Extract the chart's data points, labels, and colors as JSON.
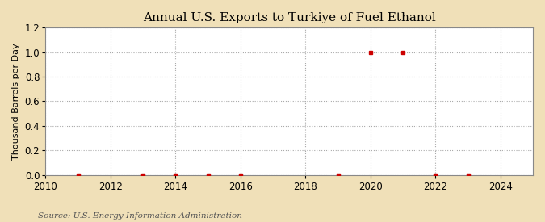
{
  "title": "Annual U.S. Exports to Turkiye of Fuel Ethanol",
  "ylabel": "Thousand Barrels per Day",
  "source": "Source: U.S. Energy Information Administration",
  "xlim": [
    2010,
    2025
  ],
  "ylim": [
    0.0,
    1.2
  ],
  "yticks": [
    0.0,
    0.2,
    0.4,
    0.6,
    0.8,
    1.0,
    1.2
  ],
  "xticks": [
    2010,
    2012,
    2014,
    2016,
    2018,
    2020,
    2022,
    2024
  ],
  "background_color": "#f0e0b8",
  "plot_bg_color": "#ffffff",
  "data_x": [
    2011,
    2013,
    2014,
    2015,
    2016,
    2019,
    2020,
    2021,
    2022,
    2023
  ],
  "data_y": [
    0.0,
    0.0,
    0.0,
    0.0,
    0.0,
    0.0,
    1.0,
    1.0,
    0.0,
    0.0
  ],
  "marker_color": "#cc0000",
  "marker_size": 3.5,
  "title_fontsize": 11,
  "label_fontsize": 8,
  "tick_fontsize": 8.5,
  "source_fontsize": 7.5
}
